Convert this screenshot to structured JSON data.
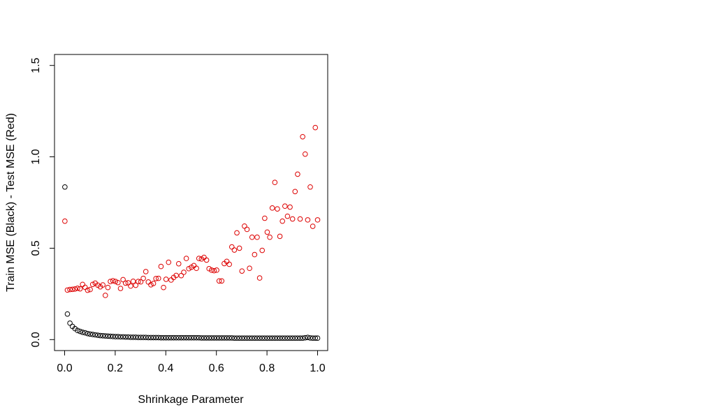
{
  "chart_data": {
    "type": "scatter",
    "title": "",
    "xlabel": "Shrinkage Parameter",
    "ylabel": "Train MSE (Black) - Test MSE (Red)",
    "xlim": [
      -0.04,
      1.04
    ],
    "ylim": [
      -0.06,
      1.56
    ],
    "x_ticks": [
      0.0,
      0.2,
      0.4,
      0.6,
      0.8,
      1.0
    ],
    "x_tick_labels": [
      "0.0",
      "0.2",
      "0.4",
      "0.6",
      "0.8",
      "1.0"
    ],
    "y_ticks": [
      0.0,
      0.5,
      1.0,
      1.5
    ],
    "y_tick_labels": [
      "0.0",
      "0.5",
      "1.0",
      "1.5"
    ],
    "grid": false,
    "legend": "none",
    "marker": "open-circle",
    "x": [
      0.001,
      0.011,
      0.021,
      0.031,
      0.041,
      0.051,
      0.061,
      0.071,
      0.081,
      0.091,
      0.101,
      0.111,
      0.121,
      0.131,
      0.141,
      0.151,
      0.161,
      0.171,
      0.181,
      0.191,
      0.201,
      0.211,
      0.221,
      0.231,
      0.241,
      0.251,
      0.261,
      0.271,
      0.281,
      0.291,
      0.301,
      0.311,
      0.321,
      0.331,
      0.341,
      0.351,
      0.361,
      0.371,
      0.381,
      0.391,
      0.401,
      0.411,
      0.421,
      0.431,
      0.441,
      0.451,
      0.461,
      0.471,
      0.481,
      0.491,
      0.501,
      0.511,
      0.521,
      0.531,
      0.541,
      0.551,
      0.561,
      0.571,
      0.581,
      0.591,
      0.601,
      0.611,
      0.621,
      0.631,
      0.641,
      0.651,
      0.661,
      0.671,
      0.681,
      0.691,
      0.701,
      0.711,
      0.721,
      0.731,
      0.741,
      0.751,
      0.761,
      0.771,
      0.781,
      0.791,
      0.801,
      0.811,
      0.821,
      0.831,
      0.841,
      0.851,
      0.861,
      0.871,
      0.881,
      0.891,
      0.901,
      0.911,
      0.921,
      0.931,
      0.941,
      0.951,
      0.961,
      0.971,
      0.981,
      0.991,
      1.0
    ],
    "series": [
      {
        "color": "#000000",
        "values": [
          0.835,
          0.14,
          0.09,
          0.072,
          0.06,
          0.05,
          0.045,
          0.04,
          0.037,
          0.033,
          0.03,
          0.028,
          0.026,
          0.024,
          0.022,
          0.021,
          0.02,
          0.019,
          0.018,
          0.017,
          0.016,
          0.016,
          0.015,
          0.015,
          0.014,
          0.014,
          0.013,
          0.013,
          0.013,
          0.012,
          0.012,
          0.012,
          0.012,
          0.011,
          0.011,
          0.011,
          0.011,
          0.011,
          0.01,
          0.01,
          0.01,
          0.01,
          0.01,
          0.01,
          0.01,
          0.01,
          0.01,
          0.01,
          0.01,
          0.01,
          0.01,
          0.01,
          0.01,
          0.01,
          0.009,
          0.009,
          0.009,
          0.009,
          0.009,
          0.009,
          0.009,
          0.009,
          0.009,
          0.009,
          0.009,
          0.009,
          0.009,
          0.008,
          0.008,
          0.008,
          0.008,
          0.008,
          0.008,
          0.008,
          0.008,
          0.008,
          0.008,
          0.008,
          0.008,
          0.008,
          0.008,
          0.008,
          0.008,
          0.008,
          0.008,
          0.008,
          0.008,
          0.008,
          0.008,
          0.008,
          0.008,
          0.008,
          0.008,
          0.008,
          0.008,
          0.01,
          0.012,
          0.009,
          0.008,
          0.008,
          0.008
        ]
      },
      {
        "color": "#dd0000",
        "values": [
          0.648,
          0.271,
          0.274,
          0.275,
          0.277,
          0.281,
          0.278,
          0.302,
          0.286,
          0.27,
          0.274,
          0.302,
          0.309,
          0.298,
          0.289,
          0.299,
          0.242,
          0.285,
          0.318,
          0.322,
          0.318,
          0.312,
          0.28,
          0.328,
          0.309,
          0.311,
          0.293,
          0.319,
          0.297,
          0.318,
          0.316,
          0.335,
          0.372,
          0.315,
          0.3,
          0.307,
          0.334,
          0.335,
          0.4,
          0.285,
          0.33,
          0.423,
          0.326,
          0.34,
          0.351,
          0.415,
          0.35,
          0.368,
          0.444,
          0.388,
          0.396,
          0.405,
          0.39,
          0.444,
          0.441,
          0.45,
          0.435,
          0.388,
          0.38,
          0.377,
          0.38,
          0.321,
          0.321,
          0.416,
          0.428,
          0.412,
          0.507,
          0.49,
          0.584,
          0.5,
          0.375,
          0.621,
          0.603,
          0.39,
          0.56,
          0.465,
          0.56,
          0.337,
          0.488,
          0.664,
          0.588,
          0.56,
          0.72,
          0.86,
          0.715,
          0.565,
          0.648,
          0.73,
          0.675,
          0.725,
          0.66,
          0.81,
          0.905,
          0.66,
          1.11,
          1.015,
          0.655,
          0.835,
          0.62,
          1.16,
          0.655
        ]
      }
    ]
  }
}
